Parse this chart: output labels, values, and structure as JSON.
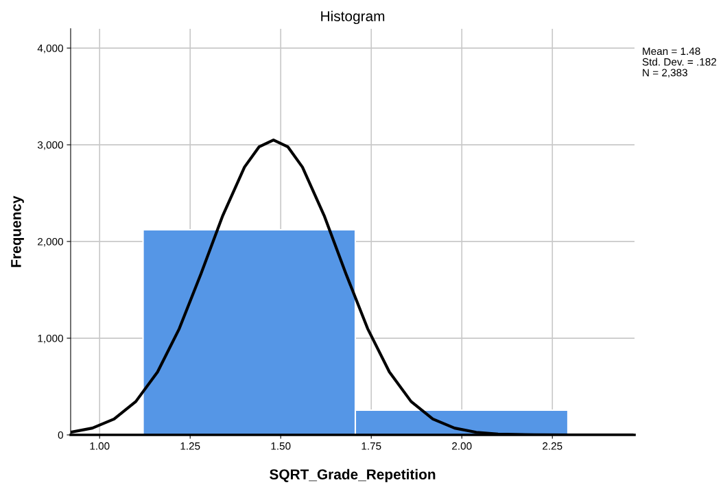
{
  "chart_data": {
    "type": "histogram",
    "title": "Histogram",
    "xlabel": "SQRT_Grade_Repetition",
    "ylabel": "Frequency",
    "bins": [
      1.12,
      1.706,
      2.293
    ],
    "values": [
      2121,
      255
    ],
    "color": "#5596e6",
    "series": [
      {
        "type": "line",
        "color": "#000000",
        "x": [
          0.92,
          0.98,
          1.04,
          1.1,
          1.16,
          1.22,
          1.28,
          1.34,
          1.4,
          1.44,
          1.48,
          1.52,
          1.56,
          1.62,
          1.68,
          1.74,
          1.8,
          1.86,
          1.92,
          1.98,
          2.04,
          2.1,
          2.2,
          2.3,
          2.47
        ],
        "values": [
          27,
          70,
          164,
          345,
          651,
          1099,
          1667,
          2268,
          2769,
          2978,
          3050,
          2978,
          2769,
          2268,
          1667,
          1099,
          651,
          345,
          164,
          70,
          27,
          9,
          1,
          0,
          0
        ]
      }
    ],
    "xlim": [
      0.92,
      2.477
    ],
    "ylim": [
      0,
      4200
    ],
    "xticks": [
      {
        "value": 1.0,
        "label": "1.00"
      },
      {
        "value": 1.25,
        "label": "1.25"
      },
      {
        "value": 1.5,
        "label": "1.50"
      },
      {
        "value": 1.75,
        "label": "1.75"
      },
      {
        "value": 2.0,
        "label": "2.00"
      },
      {
        "value": 2.25,
        "label": "2.25"
      }
    ],
    "yticks": [
      0,
      {
        "value": 1000,
        "label": "1,000"
      },
      {
        "value": 2000,
        "label": "2,000"
      },
      {
        "value": 3000,
        "label": "3,000"
      },
      {
        "value": 4000,
        "label": "4,000"
      }
    ],
    "grid": true,
    "legend": false,
    "annotations": [
      "Mean = 1.48",
      "Std. Dev. = .182",
      "N = 2,383"
    ]
  }
}
